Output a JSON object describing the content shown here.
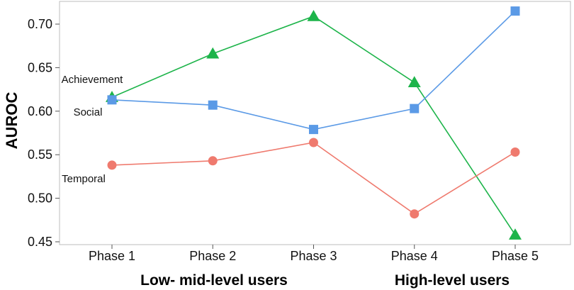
{
  "chart_data": {
    "type": "line",
    "ylabel": "AUROC",
    "ylim": [
      0.45,
      0.72
    ],
    "yticks": [
      "0.45",
      "0.50",
      "0.55",
      "0.60",
      "0.65",
      "0.70"
    ],
    "categories": [
      "Phase 1",
      "Phase 2",
      "Phase 3",
      "Phase 4",
      "Phase 5"
    ],
    "group_labels": [
      "Low- mid-level users",
      "High-level users"
    ],
    "grid": false,
    "series": [
      {
        "name": "Achievement",
        "marker": "triangle",
        "color": "#1db44a",
        "values": [
          0.616,
          0.666,
          0.709,
          0.633,
          0.458
        ]
      },
      {
        "name": "Social",
        "marker": "square",
        "color": "#5b9ae6",
        "values": [
          0.613,
          0.607,
          0.579,
          0.603,
          0.715
        ]
      },
      {
        "name": "Temporal",
        "marker": "circle",
        "color": "#ef7a6e",
        "values": [
          0.538,
          0.543,
          0.564,
          0.482,
          0.553
        ]
      }
    ]
  }
}
